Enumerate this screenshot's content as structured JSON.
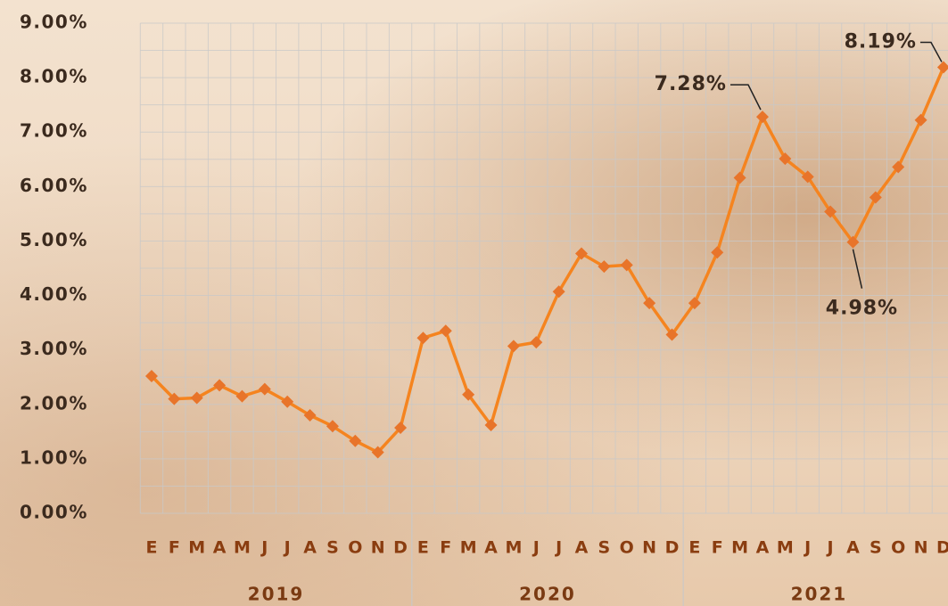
{
  "chart_data": {
    "type": "line",
    "categories": [
      "E",
      "F",
      "M",
      "A",
      "M",
      "J",
      "J",
      "A",
      "S",
      "O",
      "N",
      "D",
      "E",
      "F",
      "M",
      "A",
      "M",
      "J",
      "J",
      "A",
      "S",
      "O",
      "N",
      "D",
      "E",
      "F",
      "M",
      "A",
      "M",
      "J",
      "J",
      "A",
      "S",
      "O",
      "N",
      "D"
    ],
    "groups": [
      "2019",
      "2020",
      "2021"
    ],
    "series": [
      {
        "color": "#f5841f",
        "marker_color": "#e8742a",
        "values": [
          2.52,
          2.1,
          2.12,
          2.35,
          2.15,
          2.28,
          2.05,
          1.8,
          1.6,
          1.33,
          1.12,
          1.57,
          3.22,
          3.35,
          2.18,
          1.62,
          3.07,
          3.14,
          4.07,
          4.77,
          4.53,
          4.56,
          3.86,
          3.28,
          3.86,
          4.79,
          6.16,
          7.28,
          6.51,
          6.18,
          5.54,
          4.98,
          5.8,
          6.36,
          7.22,
          8.19
        ],
        "value_labels": [
          null,
          null,
          null,
          null,
          null,
          null,
          null,
          null,
          null,
          null,
          null,
          null,
          null,
          null,
          null,
          null,
          null,
          null,
          null,
          null,
          null,
          null,
          null,
          null,
          null,
          null,
          null,
          "7.28%",
          null,
          null,
          null,
          "4.98%",
          null,
          null,
          null,
          "8.19%"
        ]
      }
    ],
    "ylim": [
      0,
      9
    ],
    "yticks": [
      {
        "value": 0,
        "label": "0.00%"
      },
      {
        "value": 1,
        "label": "1.00%"
      },
      {
        "value": 2,
        "label": "2.00%"
      },
      {
        "value": 3,
        "label": "3.00%"
      },
      {
        "value": 4,
        "label": "4.00%"
      },
      {
        "value": 5,
        "label": "5.00%"
      },
      {
        "value": 6,
        "label": "6.00%"
      },
      {
        "value": 7,
        "label": "7.00%"
      },
      {
        "value": 8,
        "label": "8.00%"
      },
      {
        "value": 9,
        "label": "9.00%"
      }
    ],
    "grid": true
  }
}
